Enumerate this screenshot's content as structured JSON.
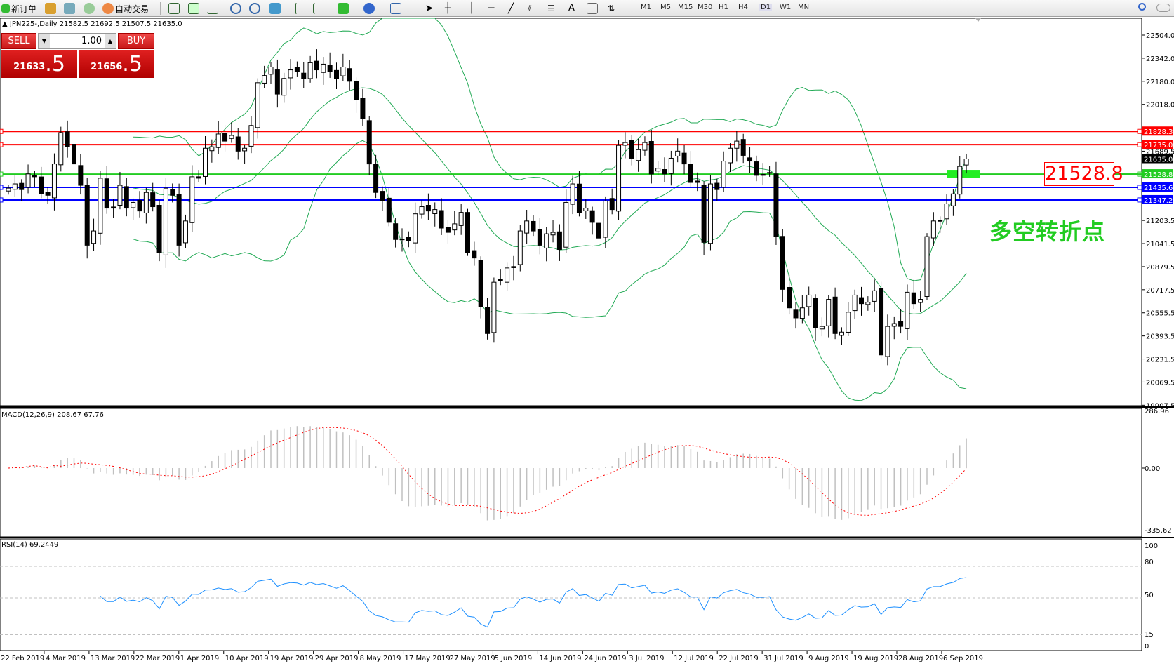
{
  "toolbar": {
    "new_order": "新订单",
    "auto_trading": "自动交易",
    "timeframes": [
      "M1",
      "M5",
      "M15",
      "M30",
      "H1",
      "H4",
      "D1",
      "W1",
      "MN"
    ]
  },
  "chart": {
    "info": "JPN225-,Daily  21582.5 21692.5 21507.5 21635.0",
    "symbol": "JPN225-",
    "period": "Daily",
    "price_axis": [
      "22504.0",
      "22342.0",
      "22180.0",
      "22018.0",
      "21689.5",
      "21203.5",
      "21041.5",
      "20879.5",
      "20717.5",
      "20555.5",
      "20393.5",
      "20231.5",
      "20069.5",
      "19907.5"
    ],
    "hlines": [
      {
        "price": 21828.3,
        "label": "21828.3",
        "color": "#ff0000"
      },
      {
        "price": 21735.0,
        "label": "21735.0",
        "color": "#ff0000"
      },
      {
        "price": 21635.0,
        "label": "21635.0",
        "color": "#000000",
        "kind": "bid"
      },
      {
        "price": 21528.8,
        "label": "21528.8",
        "color": "#22cc22"
      },
      {
        "price": 21435.6,
        "label": "21435.6",
        "color": "#0000ff"
      },
      {
        "price": 21347.2,
        "label": "21347.2",
        "color": "#0000ff"
      }
    ],
    "annotation_price": "21528.8",
    "annotation_text": "多空转折点",
    "closes": [
      21430,
      21460,
      21420,
      21530,
      21510,
      21390,
      21380,
      21600,
      21820,
      21720,
      21600,
      21450,
      21030,
      21130,
      21500,
      21290,
      21290,
      21450,
      21290,
      21330,
      21270,
      21400,
      21300,
      20980,
      21430,
      21380,
      21030,
      21200,
      21510,
      21500,
      21710,
      21720,
      21810,
      21760,
      21800,
      21690,
      21710,
      21870,
      22170,
      22220,
      22280,
      22090,
      22200,
      22260,
      22250,
      22200,
      22310,
      22260,
      22300,
      22250,
      22200,
      22280,
      22180,
      22050,
      21920,
      21600,
      21400,
      21340,
      21190,
      21070,
      21070,
      21060,
      21250,
      21300,
      21270,
      21280,
      21150,
      21120,
      21180,
      21260,
      20980,
      20940,
      20600,
      20410,
      20770,
      20780,
      20870,
      20880,
      21130,
      21200,
      21130,
      21030,
      21110,
      21120,
      21000,
      21330,
      21460,
      21260,
      21290,
      21190,
      21080,
      21340,
      21280,
      21730,
      21750,
      21640,
      21700,
      21750,
      21530,
      21570,
      21530,
      21640,
      21690,
      21600,
      21470,
      21470,
      21050,
      21460,
      21420,
      21620,
      21710,
      21760,
      21660,
      21620,
      21520,
      21520,
      21540,
      21090,
      20720,
      20590,
      20520,
      20590,
      20680,
      20450,
      20460,
      20650,
      20410,
      20420,
      20560,
      20680,
      20620,
      20630,
      20710,
      20260,
      20460,
      20480,
      20460,
      20700,
      20620,
      20650,
      21090,
      21200,
      21200,
      21320,
      21390,
      21582.5,
      21635
    ],
    "dates": [
      "22 Feb 2019",
      "4 Mar 2019",
      "13 Mar 2019",
      "22 Mar 2019",
      "1 Apr 2019",
      "10 Apr 2019",
      "19 Apr 2019",
      "29 Apr 2019",
      "8 May 2019",
      "17 May 2019",
      "27 May 2019",
      "5 Jun 2019",
      "14 Jun 2019",
      "24 Jun 2019",
      "3 Jul 2019",
      "12 Jul 2019",
      "22 Jul 2019",
      "31 Jul 2019",
      "9 Aug 2019",
      "19 Aug 2019",
      "28 Aug 2019",
      "6 Sep 2019"
    ]
  },
  "trade": {
    "sell": "SELL",
    "buy": "BUY",
    "lot": "1.00",
    "sell_main": "21633",
    "sell_frac": ".5",
    "buy_main": "21656",
    "buy_frac": ".5"
  },
  "macd": {
    "label": "MACD(12,26,9) 208.67 67.76",
    "axis": [
      "286.96",
      "0.00",
      "-335.62"
    ],
    "max": 286.96,
    "min": -335.62
  },
  "rsi": {
    "label": "RSI(14) 69.2449",
    "axis": [
      "100",
      "80",
      "50",
      "15",
      "0"
    ],
    "levels": [
      80,
      50,
      15
    ]
  },
  "colors": {
    "bands": "#22aa55",
    "signal": "#ff0000",
    "histogram": "#c0c0c0",
    "rsi": "#1e90ff"
  }
}
